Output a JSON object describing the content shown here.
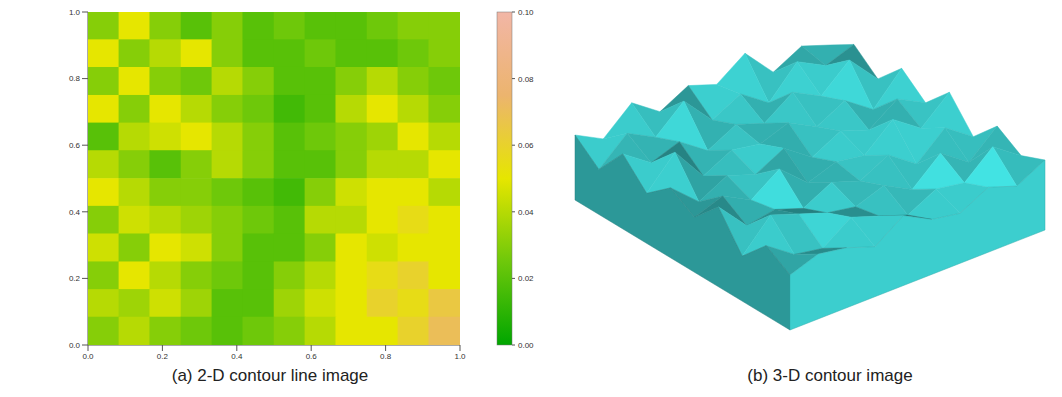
{
  "chart_data": [
    {
      "type": "heatmap",
      "title": "(a) 2-D contour line image",
      "xlim": [
        0,
        1
      ],
      "xticks": [
        {
          "value": 0,
          "label": "0.0"
        },
        {
          "value": 0.2,
          "label": "0.2"
        },
        {
          "value": 0.4,
          "label": "0.4"
        },
        {
          "value": 0.6,
          "label": "0.6"
        },
        {
          "value": 0.8,
          "label": "0.8"
        },
        {
          "value": 1,
          "label": "1.0"
        }
      ],
      "ylim": [
        0,
        1
      ],
      "yticks": [
        {
          "value": 0,
          "label": "0.0"
        },
        {
          "value": 0.2,
          "label": "0.2"
        },
        {
          "value": 0.4,
          "label": "0.4"
        },
        {
          "value": 0.6,
          "label": "0.6"
        },
        {
          "value": 0.8,
          "label": "0.8"
        },
        {
          "value": 1,
          "label": "1.0"
        }
      ],
      "cells": {
        "x": [
          0.042,
          0.125,
          0.208,
          0.292,
          0.375,
          0.458,
          0.542,
          0.625,
          0.708,
          0.792,
          0.875,
          0.958
        ],
        "y": [
          0.958,
          0.875,
          0.792,
          0.708,
          0.625,
          0.542,
          0.458,
          0.375,
          0.292,
          0.208,
          0.125,
          0.042
        ],
        "values": [
          [
            0.03,
            0.05,
            0.03,
            0.02,
            0.03,
            0.02,
            0.025,
            0.02,
            0.02,
            0.025,
            0.03,
            0.03
          ],
          [
            0.05,
            0.03,
            0.04,
            0.05,
            0.03,
            0.02,
            0.02,
            0.025,
            0.02,
            0.02,
            0.025,
            0.03
          ],
          [
            0.03,
            0.05,
            0.03,
            0.025,
            0.04,
            0.03,
            0.02,
            0.02,
            0.03,
            0.04,
            0.03,
            0.025
          ],
          [
            0.05,
            0.03,
            0.05,
            0.04,
            0.03,
            0.025,
            0.015,
            0.02,
            0.04,
            0.05,
            0.04,
            0.03
          ],
          [
            0.02,
            0.04,
            0.045,
            0.05,
            0.04,
            0.03,
            0.02,
            0.025,
            0.03,
            0.035,
            0.05,
            0.04
          ],
          [
            0.04,
            0.03,
            0.02,
            0.03,
            0.04,
            0.03,
            0.02,
            0.02,
            0.03,
            0.04,
            0.04,
            0.05
          ],
          [
            0.05,
            0.04,
            0.03,
            0.03,
            0.025,
            0.02,
            0.015,
            0.03,
            0.045,
            0.05,
            0.05,
            0.04
          ],
          [
            0.03,
            0.045,
            0.04,
            0.035,
            0.03,
            0.025,
            0.02,
            0.04,
            0.04,
            0.05,
            0.055,
            0.05
          ],
          [
            0.045,
            0.03,
            0.05,
            0.045,
            0.03,
            0.02,
            0.02,
            0.03,
            0.05,
            0.045,
            0.05,
            0.05
          ],
          [
            0.03,
            0.05,
            0.04,
            0.03,
            0.025,
            0.02,
            0.03,
            0.04,
            0.05,
            0.055,
            0.06,
            0.05
          ],
          [
            0.04,
            0.035,
            0.045,
            0.035,
            0.02,
            0.02,
            0.035,
            0.045,
            0.05,
            0.06,
            0.055,
            0.065
          ],
          [
            0.03,
            0.04,
            0.03,
            0.025,
            0.02,
            0.025,
            0.03,
            0.04,
            0.05,
            0.05,
            0.06,
            0.07
          ]
        ]
      },
      "colorbar": {
        "range": [
          0,
          0.1
        ],
        "ticks": [
          {
            "value": 0,
            "label": "0.00"
          },
          {
            "value": 0.02,
            "label": "0.02"
          },
          {
            "value": 0.04,
            "label": "0.04"
          },
          {
            "value": 0.06,
            "label": "0.06"
          },
          {
            "value": 0.08,
            "label": "0.08"
          },
          {
            "value": 0.1,
            "label": "0.10"
          }
        ]
      }
    },
    {
      "type": "surface",
      "title": "(b) 3-D contour image",
      "color": "#3fd9d9",
      "z": [
        [
          0.6,
          0.3,
          0.8,
          0.4,
          0.7,
          0.5,
          0.9,
          0.3,
          0.6,
          0.4
        ],
        [
          0.2,
          0.7,
          0.4,
          0.9,
          0.3,
          0.6,
          0.2,
          0.8,
          0.5,
          0.7
        ],
        [
          0.8,
          0.4,
          0.6,
          0.2,
          0.5,
          0.3,
          0.7,
          0.4,
          0.9,
          0.3
        ],
        [
          0.3,
          0.9,
          0.2,
          0.5,
          0.4,
          0.6,
          0.3,
          0.6,
          0.2,
          0.8
        ],
        [
          0.7,
          0.2,
          0.5,
          0.3,
          0.6,
          0.2,
          0.5,
          0.3,
          0.7,
          0.4
        ],
        [
          0.4,
          0.6,
          0.3,
          0.7,
          0.2,
          0.4,
          0.3,
          0.8,
          0.4,
          0.9
        ],
        [
          0.9,
          0.3,
          0.4,
          0.2,
          0.5,
          0.3,
          0.6,
          0.2,
          0.7,
          0.3
        ],
        [
          0.2,
          0.8,
          0.6,
          0.4,
          0.3,
          0.5,
          0.2,
          0.7,
          0.3,
          0.8
        ],
        [
          0.7,
          0.3,
          0.2,
          0.6,
          0.4,
          0.2,
          0.5,
          0.4,
          0.9,
          0.5
        ],
        [
          0.4,
          0.6,
          0.5,
          0.3,
          0.7,
          0.4,
          0.3,
          0.6,
          0.4,
          0.7
        ]
      ]
    }
  ]
}
